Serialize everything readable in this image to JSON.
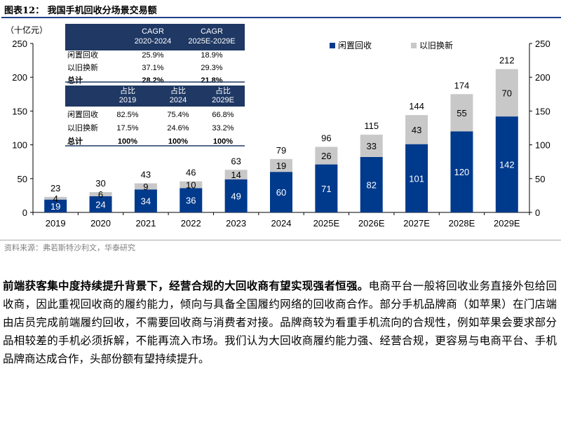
{
  "title": "图表12：  我国手机回收分场景交易额",
  "source": "资料来源：弗若斯特沙利文，华泰研究",
  "paragraph": {
    "lead": "前端获客集中度持续提升背景下，经营合规的大回收商有望实现强者恒强。",
    "body": "电商平台一般将回收业务直接外包给回收商，因此重视回收商的履约能力，倾向与具备全国履约网络的回收商合作。部分手机品牌商（如苹果）在门店端由店员完成前端履约回收，不需要回收商与消费者对接。品牌商较为看重手机流向的合规性，例如苹果会要求部分品相较差的手机必须拆解，不能再流入市场。我们认为大回收商履约能力强、经营合规，更容易与电商平台、手机品牌商达成合作，头部份额有望持续提升。"
  },
  "table": {
    "header1": [
      "CAGR\n2020-2024",
      "CAGR\n2025E-2029E"
    ],
    "rows1": [
      {
        "label": "闲置回收",
        "v": [
          "25.9%",
          "18.9%"
        ],
        "bold": false
      },
      {
        "label": "以旧换新",
        "v": [
          "37.1%",
          "29.3%"
        ],
        "bold": false
      },
      {
        "label": "总计",
        "v": [
          "28.2%",
          "21.8%"
        ],
        "bold": true
      }
    ],
    "header2": [
      "占比\n2019",
      "占比\n2024",
      "占比\n2029E"
    ],
    "rows2": [
      {
        "label": "闲置回收",
        "v": [
          "82.5%",
          "75.4%",
          "66.8%"
        ],
        "bold": false
      },
      {
        "label": "以旧换新",
        "v": [
          "17.5%",
          "24.6%",
          "33.2%"
        ],
        "bold": false
      },
      {
        "label": "总计",
        "v": [
          "100%",
          "100%",
          "100%"
        ],
        "bold": true
      }
    ]
  },
  "chart_data": {
    "type": "bar",
    "stacked": true,
    "unit_label": "（十亿元）",
    "categories": [
      "2019",
      "2020",
      "2021",
      "2022",
      "2023",
      "2024",
      "2025E",
      "2026E",
      "2027E",
      "2028E",
      "2029E"
    ],
    "series": [
      {
        "name": "闲置回收",
        "color": "#003a8c",
        "values": [
          19,
          24,
          34,
          36,
          49,
          60,
          71,
          82,
          101,
          120,
          142
        ]
      },
      {
        "name": "以旧换新",
        "color": "#c8c8c8",
        "values": [
          4,
          6,
          9,
          10,
          14,
          19,
          26,
          33,
          43,
          55,
          70
        ]
      }
    ],
    "totals": [
      23,
      30,
      43,
      46,
      63,
      79,
      96,
      115,
      144,
      174,
      212
    ],
    "ylim": [
      0,
      250
    ],
    "yticks": [
      0,
      50,
      100,
      150,
      200,
      250
    ],
    "legend_position": "top-right",
    "grid": false
  }
}
